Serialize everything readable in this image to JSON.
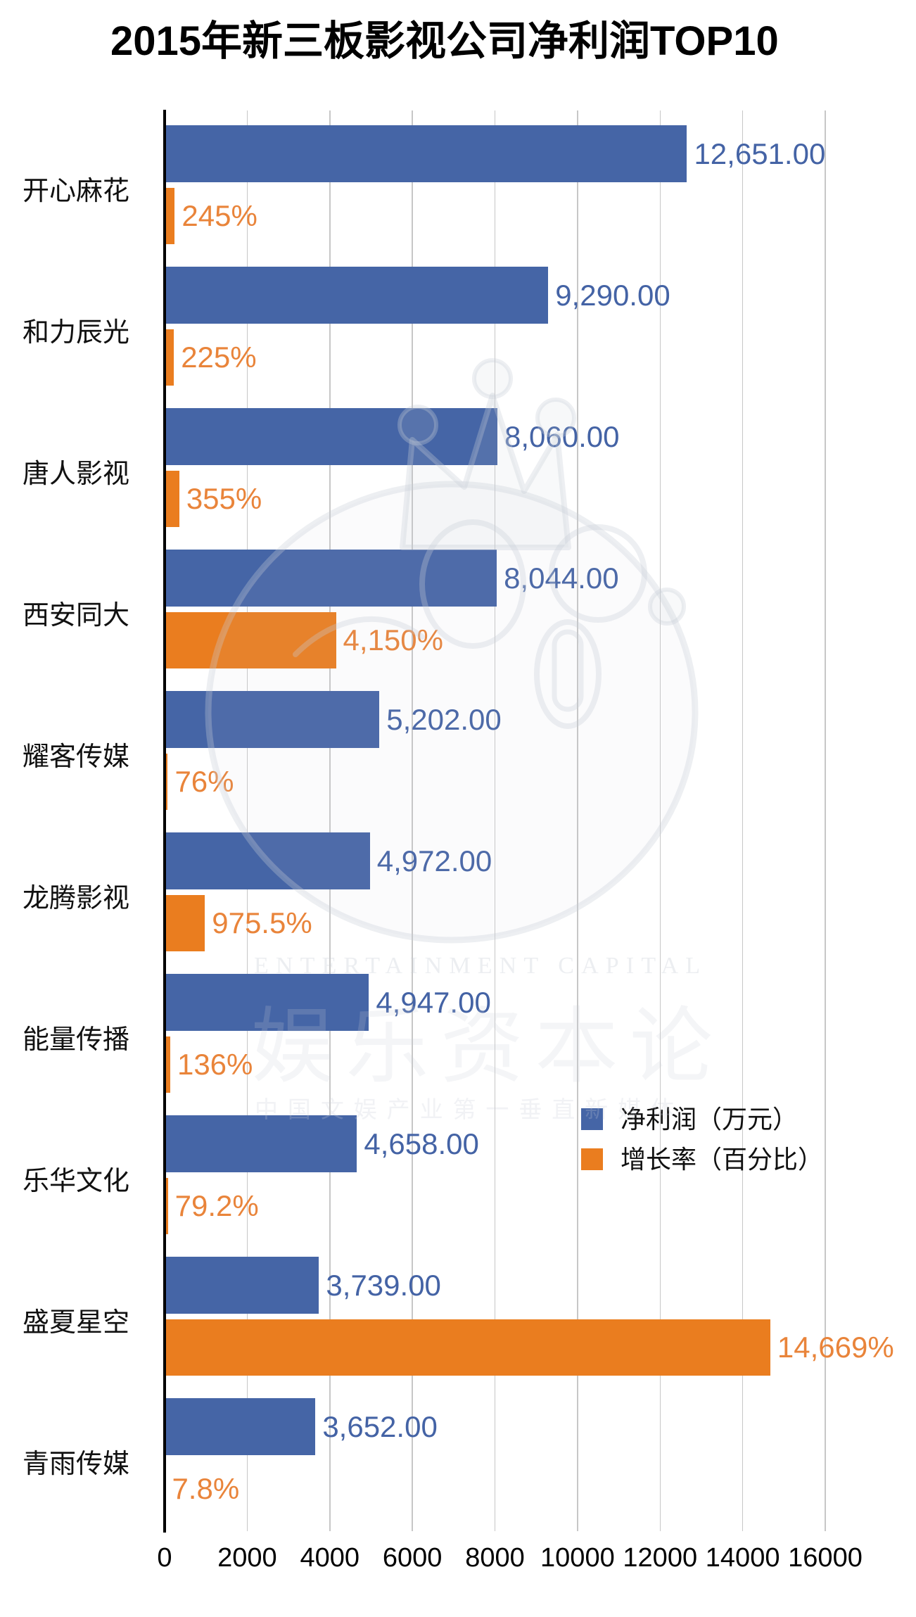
{
  "chart_data": {
    "type": "bar",
    "orientation": "horizontal",
    "title": "2015年新三板影视公司净利润TOP10",
    "categories": [
      "开心麻花",
      "和力辰光",
      "唐人影视",
      "西安同大",
      "耀客传媒",
      "龙腾影视",
      "能量传播",
      "乐华文化",
      "盛夏星空",
      "青雨传媒"
    ],
    "series": [
      {
        "name": "净利润（万元）",
        "color": "#4565a6",
        "values": [
          12651,
          9290,
          8060,
          8044,
          5202,
          4972,
          4947,
          4658,
          3739,
          3652
        ],
        "labels": [
          "12,651.00",
          "9,290.00",
          "8,060.00",
          "8,044.00",
          "5,202.00",
          "4,972.00",
          "4,947.00",
          "4,658.00",
          "3,739.00",
          "3,652.00"
        ]
      },
      {
        "name": "增长率（百分比）",
        "color": "#ea7d1f",
        "values": [
          245,
          225,
          355,
          4150,
          76,
          975.5,
          136,
          79.2,
          14669,
          7.8
        ],
        "labels": [
          "245%",
          "225%",
          "355%",
          "4,150%",
          "76%",
          "975.5%",
          "136%",
          "79.2%",
          "14,669%",
          "7.8%"
        ]
      }
    ],
    "xlabel": "",
    "ylabel": "",
    "xlim": [
      0,
      16000
    ],
    "x_ticks": [
      0,
      2000,
      4000,
      6000,
      8000,
      10000,
      12000,
      14000,
      16000
    ],
    "grid": true,
    "legend_position": "inside-lower-right"
  },
  "watermark": {
    "brand_en": "ENTERTAINMENT CAPITAL",
    "brand_cn": "娱乐资本论",
    "slogan": "中国文娱产业第一垂直新媒体"
  }
}
